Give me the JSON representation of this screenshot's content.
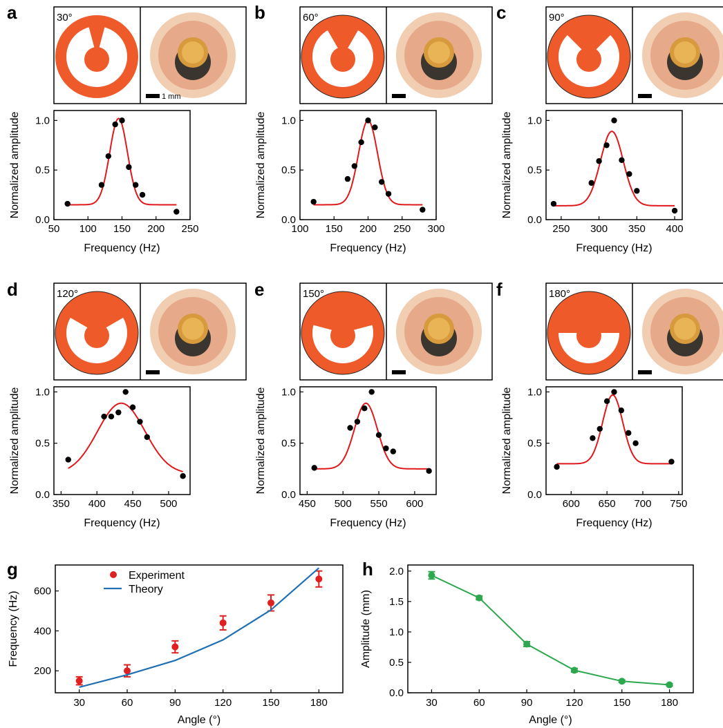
{
  "colors": {
    "shape": "#ef5a2a",
    "fit": "#e0181c",
    "theory": "#1f6fb2",
    "experiment": "#e02020",
    "amplitude": "#2ea84e",
    "points": "#000000"
  },
  "scale_bar_label": "1 mm",
  "chart_data": [
    {
      "panel": "a",
      "type": "scatter",
      "angle_label": "30°",
      "notch_deg": 30,
      "xlabel": "Frequency (Hz)",
      "ylabel": "Normalized amplitude",
      "xlim": [
        50,
        250
      ],
      "ylim": [
        0,
        1.1
      ],
      "xticks": [
        50,
        100,
        150,
        200,
        250
      ],
      "yticks": [
        0.0,
        0.5,
        1.0
      ],
      "points": [
        [
          70,
          0.16
        ],
        [
          120,
          0.35
        ],
        [
          130,
          0.64
        ],
        [
          140,
          0.96
        ],
        [
          150,
          1.0
        ],
        [
          160,
          0.53
        ],
        [
          170,
          0.35
        ],
        [
          180,
          0.25
        ],
        [
          230,
          0.08
        ]
      ],
      "fit": {
        "type": "gaussian",
        "baseline": 0.15,
        "amplitude": 0.87,
        "center": 145,
        "sigma": 13,
        "x_range": [
          70,
          230
        ]
      }
    },
    {
      "panel": "b",
      "type": "scatter",
      "angle_label": "60°",
      "notch_deg": 60,
      "xlabel": "Frequency (Hz)",
      "ylabel": "Normalized amplitude",
      "xlim": [
        100,
        300
      ],
      "ylim": [
        0,
        1.1
      ],
      "xticks": [
        100,
        150,
        200,
        250,
        300
      ],
      "yticks": [
        0.0,
        0.5,
        1.0
      ],
      "points": [
        [
          120,
          0.18
        ],
        [
          170,
          0.41
        ],
        [
          180,
          0.54
        ],
        [
          190,
          0.78
        ],
        [
          200,
          1.0
        ],
        [
          210,
          0.93
        ],
        [
          220,
          0.38
        ],
        [
          230,
          0.26
        ],
        [
          280,
          0.1
        ]
      ],
      "fit": {
        "type": "gaussian",
        "baseline": 0.15,
        "amplitude": 0.85,
        "center": 200,
        "sigma": 14,
        "x_range": [
          120,
          280
        ]
      }
    },
    {
      "panel": "c",
      "type": "scatter",
      "angle_label": "90°",
      "notch_deg": 90,
      "xlabel": "Frequency (Hz)",
      "ylabel": "Normalized amplitude",
      "xlim": [
        230,
        410
      ],
      "ylim": [
        0,
        1.1
      ],
      "xticks": [
        250,
        300,
        350,
        400
      ],
      "yticks": [
        0.0,
        0.5,
        1.0
      ],
      "points": [
        [
          240,
          0.16
        ],
        [
          290,
          0.37
        ],
        [
          300,
          0.59
        ],
        [
          310,
          0.75
        ],
        [
          320,
          1.0
        ],
        [
          330,
          0.6
        ],
        [
          340,
          0.46
        ],
        [
          350,
          0.29
        ],
        [
          400,
          0.09
        ]
      ],
      "fit": {
        "type": "gaussian",
        "baseline": 0.14,
        "amplitude": 0.75,
        "center": 317,
        "sigma": 15,
        "x_range": [
          240,
          400
        ]
      }
    },
    {
      "panel": "d",
      "type": "scatter",
      "angle_label": "120°",
      "notch_deg": 120,
      "xlabel": "Frequency (Hz)",
      "ylabel": "Normalized amplitude",
      "xlim": [
        340,
        530
      ],
      "ylim": [
        0,
        1.05
      ],
      "xticks": [
        350,
        400,
        450,
        500
      ],
      "yticks": [
        0.0,
        0.5,
        1.0
      ],
      "points": [
        [
          360,
          0.34
        ],
        [
          410,
          0.76
        ],
        [
          420,
          0.76
        ],
        [
          430,
          0.8
        ],
        [
          440,
          1.0
        ],
        [
          450,
          0.85
        ],
        [
          460,
          0.71
        ],
        [
          470,
          0.56
        ],
        [
          520,
          0.18
        ]
      ],
      "fit": {
        "type": "gaussian",
        "baseline": 0.2,
        "amplitude": 0.69,
        "center": 434,
        "sigma": 33,
        "x_range": [
          360,
          520
        ]
      }
    },
    {
      "panel": "e",
      "type": "scatter",
      "angle_label": "150°",
      "notch_deg": 150,
      "xlabel": "Frequency (Hz)",
      "ylabel": "Normalized amplitude",
      "xlim": [
        440,
        630
      ],
      "ylim": [
        0,
        1.05
      ],
      "xticks": [
        450,
        500,
        550,
        600
      ],
      "yticks": [
        0.0,
        0.5,
        1.0
      ],
      "points": [
        [
          460,
          0.26
        ],
        [
          510,
          0.65
        ],
        [
          520,
          0.71
        ],
        [
          530,
          0.84
        ],
        [
          540,
          1.0
        ],
        [
          550,
          0.58
        ],
        [
          560,
          0.45
        ],
        [
          570,
          0.42
        ],
        [
          620,
          0.23
        ]
      ],
      "fit": {
        "type": "gaussian",
        "baseline": 0.25,
        "amplitude": 0.64,
        "center": 532,
        "sigma": 16,
        "x_range": [
          460,
          620
        ]
      }
    },
    {
      "panel": "f",
      "type": "scatter",
      "angle_label": "180°",
      "notch_deg": 180,
      "xlabel": "Frequency (Hz)",
      "ylabel": "Normalized amplitude",
      "xlim": [
        565,
        755
      ],
      "ylim": [
        0,
        1.05
      ],
      "xticks": [
        600,
        650,
        700,
        750
      ],
      "yticks": [
        0.0,
        0.5,
        1.0
      ],
      "points": [
        [
          580,
          0.27
        ],
        [
          630,
          0.55
        ],
        [
          640,
          0.64
        ],
        [
          650,
          0.91
        ],
        [
          660,
          1.0
        ],
        [
          670,
          0.82
        ],
        [
          680,
          0.6
        ],
        [
          690,
          0.5
        ],
        [
          740,
          0.32
        ]
      ],
      "fit": {
        "type": "gaussian",
        "baseline": 0.3,
        "amplitude": 0.67,
        "center": 658,
        "sigma": 14,
        "x_range": [
          580,
          740
        ]
      }
    },
    {
      "panel": "g",
      "type": "line",
      "xlabel": "Angle (°)",
      "ylabel": "Frequency (Hz)",
      "xlim": [
        15,
        195
      ],
      "ylim": [
        90,
        730
      ],
      "xticks": [
        30,
        60,
        90,
        120,
        150,
        180
      ],
      "yticks": [
        200,
        400,
        600
      ],
      "legend": {
        "position": "top-left",
        "entries": [
          "Experiment",
          "Theory"
        ]
      },
      "series": [
        {
          "name": "Experiment",
          "kind": "points_with_error",
          "x": [
            30,
            60,
            90,
            120,
            150,
            180
          ],
          "values": [
            150,
            200,
            320,
            440,
            540,
            660
          ],
          "errors": [
            20,
            30,
            30,
            35,
            40,
            40
          ]
        },
        {
          "name": "Theory",
          "kind": "line",
          "x": [
            30,
            60,
            90,
            120,
            150,
            180
          ],
          "values": [
            118,
            180,
            252,
            355,
            505,
            715
          ]
        }
      ]
    },
    {
      "panel": "h",
      "type": "line",
      "xlabel": "Angle (°)",
      "ylabel": "Amplitude (mm)",
      "xlim": [
        15,
        195
      ],
      "ylim": [
        0,
        2.1
      ],
      "xticks": [
        30,
        60,
        90,
        120,
        150,
        180
      ],
      "yticks": [
        0.0,
        0.5,
        1.0,
        1.5,
        2.0
      ],
      "series": [
        {
          "kind": "line_points_with_error",
          "x": [
            30,
            60,
            90,
            120,
            150,
            180
          ],
          "values": [
            1.93,
            1.56,
            0.8,
            0.37,
            0.19,
            0.13
          ],
          "errors": [
            0.06,
            0.03,
            0.04,
            0.03,
            0.02,
            0.02
          ]
        }
      ]
    }
  ]
}
